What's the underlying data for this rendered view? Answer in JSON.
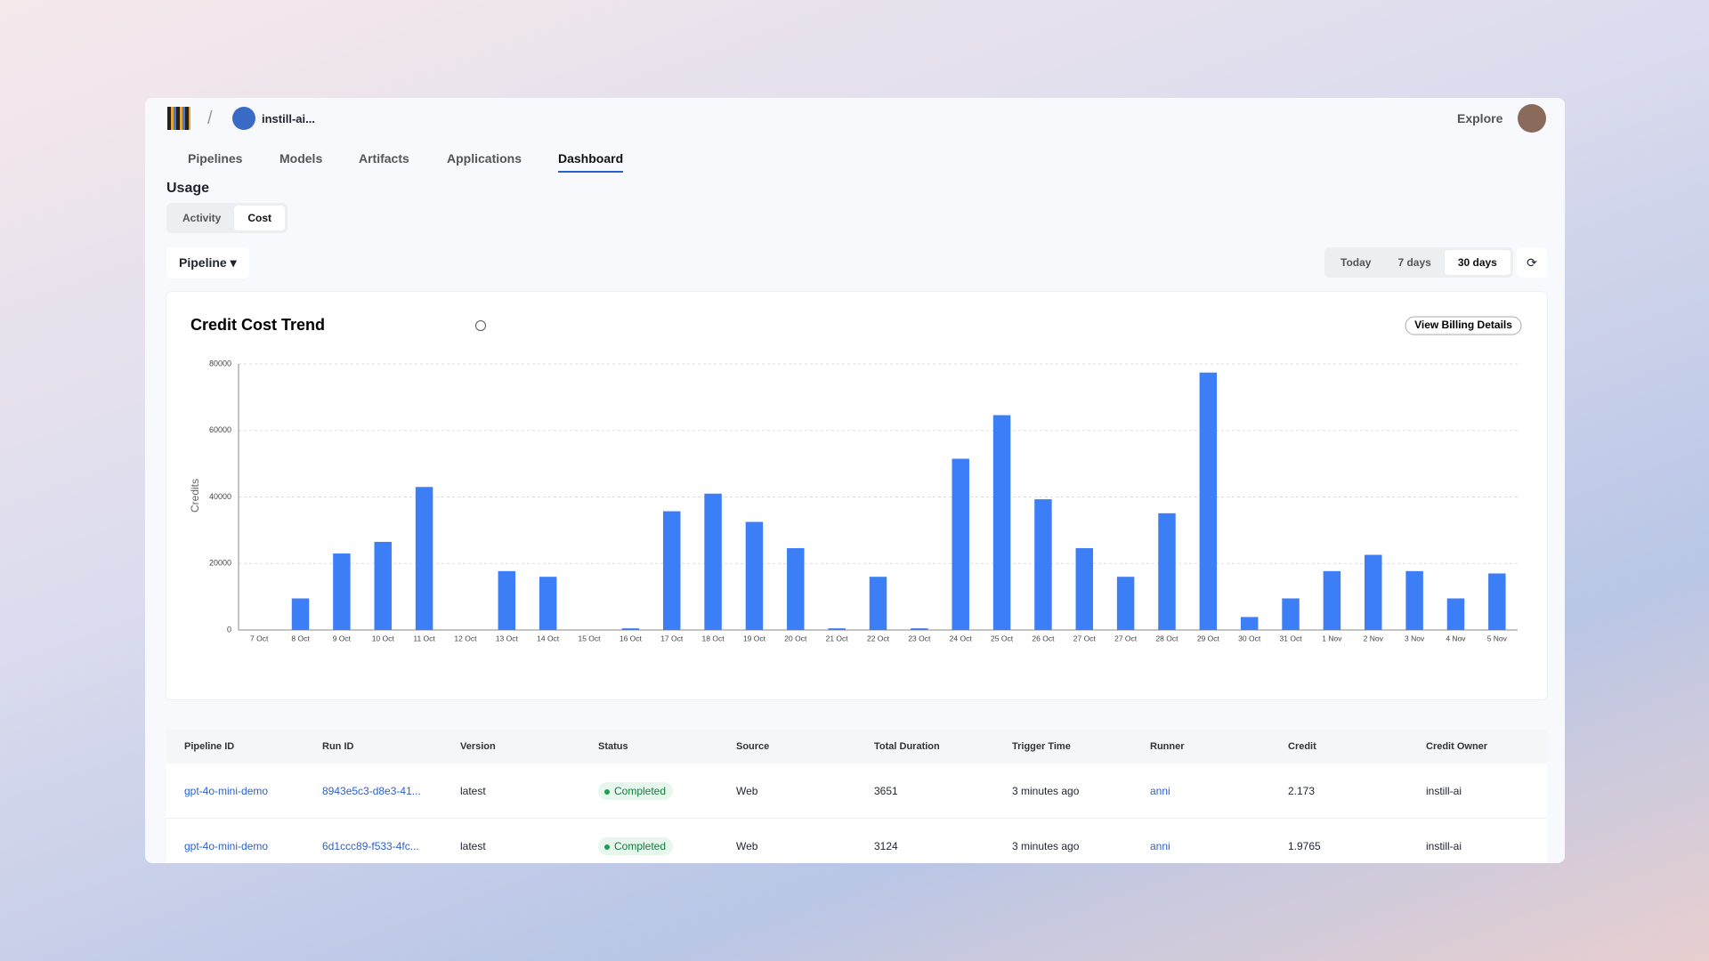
{
  "header": {
    "org": "instill-ai...",
    "explore": "Explore"
  },
  "nav": [
    "Pipelines",
    "Models",
    "Artifacts",
    "Applications",
    "Dashboard"
  ],
  "usage": {
    "title": "Usage",
    "tabs": [
      "Activity",
      "Cost"
    ]
  },
  "filter": "Pipeline",
  "ranges": [
    "Today",
    "7 days",
    "30 days"
  ],
  "billing_button": "View Billing Details",
  "chart_data": {
    "type": "bar",
    "title": "Credit Cost Trend",
    "y_label": "Credits",
    "categories": [
      "7 Oct",
      "8 Oct",
      "9 Oct",
      "10 Oct",
      "11 Oct",
      "12 Oct",
      "13 Oct",
      "14 Oct",
      "15 Oct",
      "16 Oct",
      "17 Oct",
      "18 Oct",
      "19 Oct",
      "20 Oct",
      "21 Oct",
      "22 Oct",
      "23 Oct",
      "24 Oct",
      "25 Oct",
      "26 Oct",
      "27 Oct",
      "27 Oct",
      "28 Oct",
      "29 Oct",
      "30 Oct",
      "31 Oct",
      "1 Nov",
      "2 Nov",
      "3 Nov",
      "4 Nov",
      "5 Nov"
    ],
    "values": [
      0,
      9500,
      23000,
      26500,
      43000,
      0,
      17700,
      16000,
      0,
      500,
      35700,
      41000,
      32500,
      24600,
      500,
      16000,
      500,
      51500,
      64600,
      39300,
      24600,
      16000,
      35100,
      77400,
      3900,
      9500,
      17700,
      22600,
      17700,
      9500,
      17000
    ],
    "color": "#3b7ef6",
    "ylim": [
      0,
      80000
    ],
    "yticks": [
      0,
      20000,
      40000,
      60000,
      80000
    ],
    "grid": true
  },
  "table": {
    "columns": [
      "Pipeline ID",
      "Run ID",
      "Version",
      "Status",
      "Source",
      "Total Duration",
      "Trigger Time",
      "Runner",
      "Credit",
      "Credit Owner"
    ],
    "rows": [
      [
        "gpt-4o-mini-demo",
        "8943e5c3-d8e3-41...",
        "latest",
        "Completed",
        "Web",
        "3651",
        "3 minutes ago",
        "anni",
        "2.173",
        "instill-ai"
      ],
      [
        "gpt-4o-mini-demo",
        "6d1ccc89-f533-4fc...",
        "latest",
        "Completed",
        "Web",
        "3124",
        "3 minutes ago",
        "anni",
        "1.9765",
        "instill-ai"
      ]
    ]
  }
}
